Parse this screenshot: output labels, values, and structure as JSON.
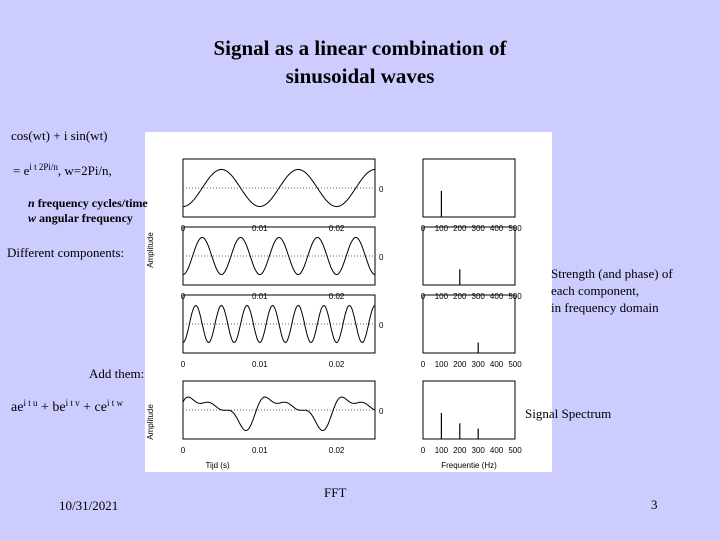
{
  "slide": {
    "title_line1": "Signal as a linear combination of",
    "title_line2": "sinusoidal waves",
    "eq1": "cos(wt) + i sin(wt)",
    "eq2_prefix": "= e",
    "eq2_sup": "i t 2Pi/n",
    "eq2_suffix": ", w=2Pi/n,",
    "n_symbol": "n",
    "n_desc": " frequency cycles/time",
    "w_symbol": "w",
    "w_desc": " angular frequency",
    "different_components": "Different components:",
    "strength_line1": "Strength (and phase) of",
    "strength_line2": "each component,",
    "strength_line3": "in frequency domain",
    "add_them": "Add them:",
    "sum": {
      "t1_base": "ae",
      "t1_sup": "i t u",
      "op1": " + ",
      "t2_base": "be",
      "t2_sup": "i t v",
      "op2": " + ",
      "t3_base": "ce",
      "t3_sup": "i t w"
    },
    "signal_spectrum": "Signal Spectrum",
    "date": "10/31/2021",
    "footer_center": "FFT",
    "page_number": "3"
  },
  "figure": {
    "time_ticks": [
      "0",
      "0.01",
      "0.02"
    ],
    "freq_ticks": [
      "0",
      "100",
      "200",
      "300",
      "400",
      "500"
    ],
    "zero_label": "0",
    "amplitude_label": "Amplitude",
    "time_axis_label": "Tijd (s)",
    "freq_axis_label": "Frequentie (Hz)"
  },
  "chart_data": {
    "type": "line",
    "panels": [
      {
        "row": 1,
        "time_frequency_hz": 100,
        "spectrum": [
          {
            "frequency_hz": 100,
            "amplitude": 1.0
          }
        ]
      },
      {
        "row": 2,
        "time_frequency_hz": 200,
        "spectrum": [
          {
            "frequency_hz": 200,
            "amplitude": 0.6
          }
        ]
      },
      {
        "row": 3,
        "time_frequency_hz": 300,
        "spectrum": [
          {
            "frequency_hz": 300,
            "amplitude": 0.4
          }
        ]
      },
      {
        "row": 4,
        "combined": true,
        "spectrum": [
          {
            "frequency_hz": 100,
            "amplitude": 1.0
          },
          {
            "frequency_hz": 200,
            "amplitude": 0.6
          },
          {
            "frequency_hz": 300,
            "amplitude": 0.4
          }
        ]
      }
    ],
    "time_range_s": [
      0,
      0.025
    ],
    "frequency_range_hz": [
      0,
      500
    ]
  }
}
